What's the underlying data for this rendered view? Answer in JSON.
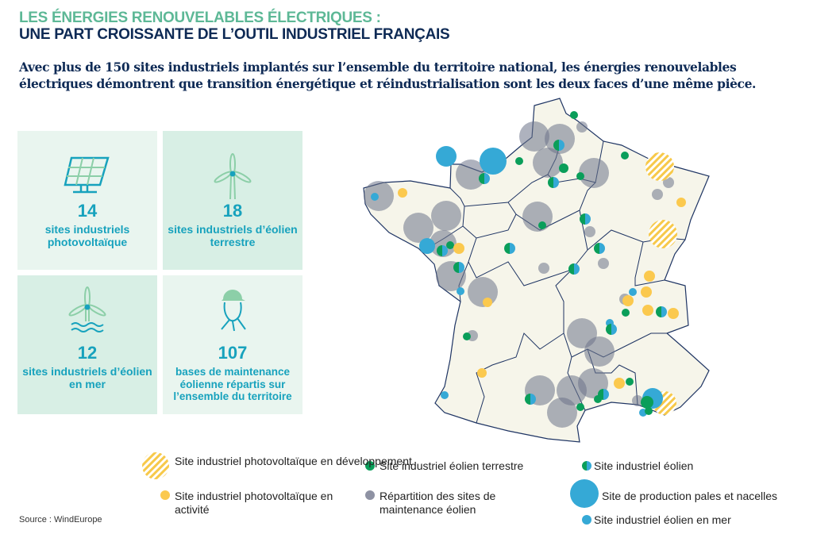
{
  "header": {
    "title_line1": "LES ÉNERGIES RENOUVELABLES ÉLECTRIQUES :",
    "title_line2": "UNE PART CROISSANTE DE L’OUTIL INDUSTRIEL FRANÇAIS",
    "intro": "Avec plus de 150 sites industriels implantés sur l’ensemble du territoire national, les énergies renouvelables électriques démontrent que transition énergétique et réindustrialisation sont les deux faces d’une même pièce."
  },
  "stats": [
    {
      "icon": "solar-panel-icon",
      "value": "14",
      "label": "sites industriels photovoltaïque"
    },
    {
      "icon": "wind-turbine-icon",
      "value": "18",
      "label": "sites industriels d’éolien terrestre"
    },
    {
      "icon": "offshore-wind-turbine-icon",
      "value": "12",
      "label": "sites industriels d’éolien en mer"
    },
    {
      "icon": "technician-icon",
      "value": "107",
      "label": "bases de maintenance éolienne répartis sur l’ensemble du territoire"
    }
  ],
  "legend": [
    {
      "key": "pv-dev",
      "label": "Site industriel photovoltaïque en développement",
      "color": "#f7c94a"
    },
    {
      "key": "pv-active",
      "label": "Site industriel photovoltaïque en activité",
      "color": "#fbc94e"
    },
    {
      "key": "onshore",
      "label": "Site industriel éolien terrestre",
      "color": "#0a9e5a"
    },
    {
      "key": "maintenance",
      "label": "Répartition des sites de maintenance éolien",
      "color": "#8e92a3"
    },
    {
      "key": "wind",
      "label": "Site industriel éolien",
      "color": "#0a9e5a"
    },
    {
      "key": "blades",
      "label": "Site de production pales et nacelles",
      "color": "#35a9d6"
    },
    {
      "key": "offshore",
      "label": "Site industriel éolien en mer",
      "color": "#35a9d6"
    }
  ],
  "source": "Source : WindEurope"
}
